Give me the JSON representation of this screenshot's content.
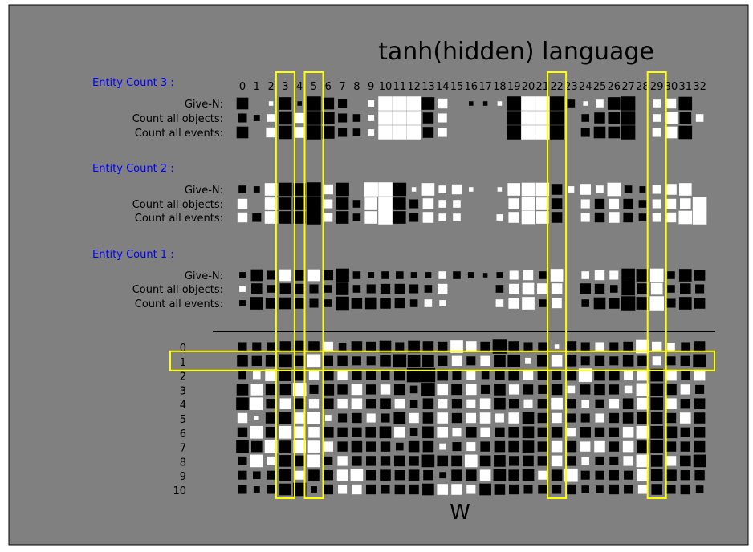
{
  "figure": {
    "title": "tanh(hidden) language",
    "xlabel": "W",
    "background": "#808080",
    "highlight_color": "#ffff00",
    "group_label_color": "#0000ff"
  },
  "chart_data": {
    "type": "heatmap",
    "style": "hinton",
    "title": "tanh(hidden) language",
    "xlabel": "W",
    "columns": [
      "0",
      "1",
      "2",
      "3",
      "4",
      "5",
      "6",
      "7",
      "8",
      "9",
      "10",
      "11",
      "12",
      "13",
      "14",
      "15",
      "16",
      "17",
      "18",
      "19",
      "20",
      "21",
      "22",
      "23",
      "24",
      "25",
      "26",
      "27",
      "28",
      "29",
      "30",
      "31",
      "32"
    ],
    "highlighted_columns": [
      "3",
      "5",
      "22",
      "29"
    ],
    "highlighted_rows": [
      "1"
    ],
    "groups": [
      {
        "label": "Entity Count 3 :",
        "rows": [
          {
            "label": "Give-N:",
            "values": [
              -0.7,
              0,
              0.1,
              -0.8,
              -0.1,
              -1,
              -0.7,
              -0.4,
              0,
              0.2,
              1,
              1,
              1,
              -0.8,
              0.5,
              0,
              -0.1,
              -0.1,
              0.1,
              -1,
              1,
              1,
              -1,
              -0.3,
              0.1,
              0.3,
              -0.8,
              -1,
              0,
              0.3,
              0.5,
              -0.9,
              0
            ]
          },
          {
            "label": "Count all objects:",
            "values": [
              -0.4,
              -0.2,
              0.3,
              -0.9,
              0.5,
              -1,
              -0.8,
              -0.4,
              -0.3,
              0.2,
              1,
              1,
              1,
              -0.6,
              0.4,
              0,
              0,
              0,
              0,
              -1,
              1,
              1,
              -1,
              0,
              -0.3,
              -0.6,
              -0.7,
              -1,
              0,
              0.3,
              0.8,
              -0.7,
              0.3
            ]
          },
          {
            "label": "Count all events:",
            "values": [
              -0.7,
              0,
              0.5,
              -0.9,
              0.6,
              -1,
              -0.8,
              -0.4,
              -0.3,
              0.2,
              1,
              1,
              1,
              -0.6,
              0.4,
              0,
              0,
              0,
              0,
              -1,
              1,
              1,
              -1,
              0,
              -0.4,
              -0.7,
              -0.7,
              -1,
              0,
              0.4,
              0.7,
              -0.9,
              0
            ]
          }
        ]
      },
      {
        "label": "Entity Count 2 :",
        "rows": [
          {
            "label": "Give-N:",
            "values": [
              -0.3,
              -0.2,
              0.8,
              -0.9,
              -0.8,
              -1,
              0.5,
              -0.9,
              0,
              1,
              1,
              -0.9,
              0.1,
              0.8,
              0.3,
              0.5,
              0.1,
              0,
              0.1,
              0.8,
              0.9,
              0.9,
              -0.6,
              0.2,
              0.6,
              0.3,
              0.9,
              -0.3,
              -0.2,
              0.4,
              0.6,
              0.8,
              0
            ]
          },
          {
            "label": "Count all objects:",
            "values": [
              0.5,
              0,
              0.8,
              -0.8,
              -0.8,
              -1,
              0.4,
              -0.8,
              -0.3,
              0.8,
              1,
              -0.8,
              -0.4,
              0.6,
              0.3,
              0.3,
              0,
              0,
              0,
              0.6,
              0.9,
              0.8,
              -0.6,
              0,
              0.4,
              -0.5,
              0.5,
              -0.5,
              -0.3,
              0.4,
              0.5,
              0.6,
              1
            ]
          },
          {
            "label": "Count all events:",
            "values": [
              0.5,
              -0.4,
              0.8,
              -0.8,
              -0.8,
              -1,
              0.4,
              -0.8,
              -0.3,
              0.8,
              1,
              -0.8,
              -0.4,
              0.6,
              0.3,
              0.3,
              0,
              0,
              0.2,
              0.6,
              0.9,
              0.8,
              -0.6,
              0,
              0.4,
              -0.5,
              0.6,
              -0.5,
              -0.3,
              0.4,
              0.5,
              0.9,
              1
            ]
          }
        ]
      },
      {
        "label": "Entity Count 1 :",
        "rows": [
          {
            "label": "Give-N:",
            "values": [
              -0.2,
              -0.7,
              -0.4,
              0.7,
              -0.6,
              0.7,
              -0.5,
              -0.9,
              -0.3,
              -0.2,
              -0.3,
              -0.3,
              -0.2,
              -0.2,
              0.3,
              -0.3,
              -0.2,
              -0.1,
              -0.2,
              0.4,
              0.5,
              -0.3,
              0.8,
              0,
              0.3,
              0.5,
              0.4,
              -0.9,
              -0.8,
              0.9,
              -0.3,
              -0.8,
              -0.6
            ]
          },
          {
            "label": "Count all objects:",
            "values": [
              0.2,
              -0.6,
              -0.3,
              -0.6,
              -0.5,
              -0.4,
              -0.3,
              -0.8,
              -0.3,
              -0.4,
              -0.5,
              -0.5,
              -0.4,
              -0.3,
              0.5,
              0,
              0,
              0,
              -0.3,
              0.5,
              0.7,
              0.6,
              0.6,
              0,
              -0.6,
              -0.5,
              -0.3,
              -0.9,
              -0.6,
              0.7,
              -0.3,
              -0.6,
              -0.4
            ]
          },
          {
            "label": "Count all events:",
            "values": [
              -0.2,
              -0.8,
              -0.6,
              -0.7,
              -0.6,
              -0.4,
              -0.3,
              -0.9,
              -0.6,
              -0.7,
              -0.6,
              -0.5,
              -0.3,
              0.3,
              0.2,
              0,
              0,
              0,
              0.3,
              0.6,
              0.8,
              -0.3,
              0.5,
              0,
              -0.3,
              -0.7,
              -0.6,
              -1,
              -0.8,
              1,
              -0.4,
              -0.8,
              -0.6
            ]
          }
        ]
      }
    ],
    "w_rows": [
      {
        "label": "0",
        "values": [
          -0.4,
          -0.4,
          -0.4,
          -0.6,
          -0.7,
          -0.6,
          0.5,
          -0.3,
          -0.6,
          -0.5,
          -0.7,
          -0.4,
          -0.7,
          -0.6,
          -0.5,
          0.8,
          0.6,
          -0.5,
          -1,
          -0.6,
          -0.4,
          -0.4,
          0.1,
          -0.6,
          -0.4,
          0.4,
          -0.4,
          -0.5,
          0.9,
          0.5,
          0.3,
          -0.4,
          -0.6
        ]
      },
      {
        "label": "1",
        "values": [
          -0.6,
          -0.5,
          -0.6,
          -0.9,
          -0.5,
          0.9,
          -0.5,
          -0.5,
          -0.4,
          -0.4,
          -0.6,
          -0.9,
          -0.8,
          -0.7,
          -0.5,
          0.5,
          -0.4,
          0.5,
          -0.7,
          -0.8,
          0.2,
          -0.6,
          0.6,
          -0.6,
          -0.4,
          -0.5,
          -0.4,
          -0.6,
          -0.5,
          0.4,
          -0.4,
          -0.5,
          -0.9
        ]
      },
      {
        "label": "2",
        "values": [
          -0.3,
          0.3,
          0.7,
          -0.7,
          -0.6,
          0.5,
          -0.6,
          0.5,
          -0.5,
          -0.5,
          -0.4,
          -0.6,
          -1,
          -1,
          -0.6,
          -0.4,
          0.4,
          -0.3,
          -0.5,
          -0.6,
          0.5,
          -0.5,
          -0.4,
          -0.6,
          0.9,
          -0.6,
          -0.6,
          0.4,
          0.6,
          -0.8,
          0.6,
          -0.4,
          0.6
        ]
      },
      {
        "label": "3",
        "values": [
          -0.7,
          0.7,
          -0.6,
          -0.6,
          0.9,
          -0.4,
          -0.7,
          -0.5,
          0.6,
          -0.5,
          0.5,
          -0.6,
          -0.3,
          -0.9,
          0.6,
          -0.6,
          0.6,
          -0.4,
          -0.7,
          0.5,
          -0.5,
          -0.4,
          -0.6,
          0.3,
          -0.5,
          -0.6,
          -0.5,
          0.3,
          0.8,
          -0.8,
          -0.6,
          0.5,
          -0.4
        ]
      },
      {
        "label": "4",
        "values": [
          -0.8,
          0.8,
          -0.5,
          0.6,
          -0.6,
          0.5,
          -0.6,
          0.5,
          0.6,
          -0.5,
          -0.6,
          0.5,
          -0.3,
          -0.6,
          0.5,
          -0.5,
          0.4,
          0.6,
          -0.7,
          -0.5,
          0.4,
          -0.5,
          0.7,
          -0.5,
          0.3,
          -0.4,
          0.5,
          -0.6,
          0.7,
          -0.8,
          0.6,
          -0.5,
          -0.6
        ]
      },
      {
        "label": "5",
        "values": [
          0.5,
          0.1,
          -0.6,
          -0.8,
          0.6,
          0.8,
          0.2,
          -0.4,
          -0.5,
          0.4,
          -0.4,
          -0.7,
          0.5,
          -0.6,
          0.6,
          -0.5,
          0.5,
          0.6,
          0.4,
          0.6,
          -0.7,
          -0.5,
          0.5,
          -0.4,
          -0.4,
          0.4,
          -0.5,
          -0.6,
          -0.7,
          -0.7,
          -0.5,
          0.6,
          -0.6
        ]
      },
      {
        "label": "6",
        "values": [
          -0.5,
          0.8,
          -0.6,
          0.8,
          0.7,
          0.6,
          -0.6,
          -0.5,
          -0.5,
          -0.6,
          -0.7,
          0.6,
          -0.3,
          -0.7,
          0.6,
          0.4,
          -0.6,
          0.5,
          -0.5,
          -0.6,
          -0.7,
          -0.5,
          -0.6,
          0.4,
          -0.6,
          -0.5,
          -0.5,
          0.6,
          0.8,
          -0.8,
          -0.7,
          -0.5,
          -0.6
        ]
      },
      {
        "label": "7",
        "values": [
          -0.8,
          -0.6,
          0.8,
          -0.7,
          0.8,
          0.7,
          0.5,
          -0.5,
          -0.6,
          -0.5,
          -0.5,
          -0.3,
          -0.6,
          -0.6,
          0.2,
          -0.4,
          0.4,
          -0.5,
          -0.6,
          -0.6,
          -0.7,
          -0.5,
          0.6,
          -0.6,
          0.5,
          0.6,
          -0.5,
          0.6,
          -0.7,
          -0.8,
          -0.5,
          -0.5,
          -0.6
        ]
      },
      {
        "label": "8",
        "values": [
          -0.4,
          0.8,
          0.4,
          -0.7,
          -0.6,
          0.8,
          -0.4,
          0.5,
          -0.5,
          -0.5,
          -0.5,
          -0.6,
          -0.5,
          -0.8,
          -0.6,
          -0.6,
          0.8,
          -0.6,
          -0.7,
          -0.5,
          -0.6,
          -0.5,
          0.6,
          -0.5,
          0.3,
          -0.4,
          -0.4,
          0.5,
          0.8,
          -0.7,
          0.5,
          -0.6,
          -0.8
        ]
      },
      {
        "label": "9",
        "values": [
          -0.4,
          -0.3,
          -0.4,
          -0.7,
          0.4,
          -0.6,
          -0.5,
          0.6,
          0.8,
          -0.5,
          -0.6,
          -0.5,
          -0.6,
          -0.5,
          -0.2,
          -0.6,
          -0.6,
          0.6,
          -0.8,
          -0.6,
          -0.7,
          0.4,
          -0.6,
          0.9,
          -0.4,
          -0.4,
          -0.5,
          -0.4,
          0.7,
          -0.7,
          -0.6,
          -0.5,
          -0.5
        ]
      },
      {
        "label": "10",
        "values": [
          -0.4,
          -0.2,
          -0.4,
          -0.7,
          -0.9,
          -0.2,
          -0.5,
          0.4,
          0.5,
          -0.5,
          -0.4,
          -0.5,
          -0.5,
          -0.7,
          0.6,
          0.6,
          0.4,
          -0.7,
          -0.6,
          -0.5,
          -0.4,
          -0.4,
          -0.4,
          -0.5,
          -0.3,
          -0.3,
          -0.5,
          -0.4,
          0.4,
          -0.6,
          -0.4,
          -0.5,
          -0.3
        ]
      }
    ]
  }
}
